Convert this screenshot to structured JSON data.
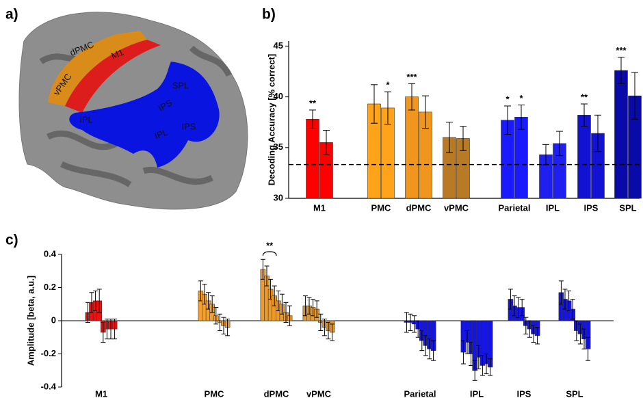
{
  "panel_a": {
    "panel_label": "a)",
    "region_labels": [
      "dPMC",
      "M1",
      "vPMC",
      "SPL",
      "IPS",
      "IPL",
      "IPL",
      "IPS"
    ]
  },
  "chart_data": [
    {
      "type": "bar",
      "panel_label": "b)",
      "ylabel": "Decoding Accuracy [% correct]",
      "categories": [
        "M1",
        "PMC",
        "dPMC",
        "vPMC",
        "Parietal",
        "IPL",
        "IPS",
        "SPL"
      ],
      "colors": [
        "#ff0000",
        "#ffa31a",
        "#f0961e",
        "#b97a26",
        "#1a1aff",
        "#1f1ff0",
        "#1212d2",
        "#0a0aa8"
      ],
      "series": [
        {
          "values": [
            37.8,
            39.3,
            40.0,
            36.0,
            37.7,
            34.3,
            38.2,
            42.6
          ],
          "errors": [
            0.9,
            1.9,
            1.3,
            1.5,
            1.4,
            1.0,
            1.1,
            1.3
          ],
          "annotations": [
            "**",
            null,
            "***",
            null,
            "*",
            null,
            "**",
            "***"
          ]
        },
        {
          "values": [
            35.5,
            38.9,
            38.5,
            35.9,
            38.0,
            35.4,
            36.4,
            40.1
          ],
          "errors": [
            1.2,
            1.6,
            1.6,
            1.2,
            1.2,
            1.2,
            1.8,
            2.3
          ],
          "annotations": [
            null,
            "*",
            null,
            null,
            "*",
            null,
            null,
            null
          ]
        }
      ],
      "ylim": [
        30,
        45.5
      ],
      "yticks": [
        30,
        35,
        40,
        45
      ],
      "reference_line": 33.33
    },
    {
      "type": "bar",
      "panel_label": "c)",
      "ylabel": "Amplitude [beta, a.u.]",
      "categories": [
        "M1",
        "PMC",
        "dPMC",
        "vPMC",
        "Parietal",
        "IPL",
        "IPS",
        "SPL"
      ],
      "colors": [
        "#ee1111",
        "#f2a030",
        "#eb9a2c",
        "#e09a38",
        "#1414e6",
        "#1414e6",
        "#1414e6",
        "#1414e6"
      ],
      "series": [
        {
          "values": [
            0.05,
            0.18,
            0.31,
            0.09,
            -0.01,
            -0.19,
            0.13,
            0.17
          ],
          "errors": [
            0.06,
            0.06,
            0.06,
            0.06,
            0.06,
            0.07,
            0.06,
            0.07
          ]
        },
        {
          "values": [
            0.11,
            0.16,
            0.27,
            0.09,
            -0.01,
            -0.13,
            0.09,
            0.13
          ],
          "errors": [
            0.06,
            0.06,
            0.06,
            0.05,
            0.05,
            0.07,
            0.06,
            0.06
          ]
        },
        {
          "values": [
            0.12,
            0.12,
            0.19,
            0.08,
            -0.02,
            -0.2,
            0.08,
            0.12
          ],
          "errors": [
            0.06,
            0.05,
            0.06,
            0.05,
            0.05,
            0.07,
            0.06,
            0.06
          ]
        },
        {
          "values": [
            0.12,
            0.1,
            0.15,
            0.07,
            -0.05,
            -0.3,
            0.08,
            0.07
          ],
          "errors": [
            0.07,
            0.05,
            0.06,
            0.05,
            0.05,
            0.06,
            0.05,
            0.06
          ]
        },
        {
          "values": [
            -0.07,
            0.03,
            0.12,
            -0.01,
            -0.12,
            -0.22,
            -0.03,
            -0.06
          ],
          "errors": [
            0.06,
            0.05,
            0.06,
            0.05,
            0.06,
            0.07,
            0.05,
            0.06
          ]
        },
        {
          "values": [
            -0.05,
            -0.01,
            0.1,
            -0.04,
            -0.15,
            -0.27,
            -0.05,
            -0.08
          ],
          "errors": [
            0.06,
            0.05,
            0.06,
            0.05,
            0.06,
            0.06,
            0.05,
            0.06
          ]
        },
        {
          "values": [
            -0.05,
            -0.03,
            0.05,
            -0.06,
            -0.17,
            -0.26,
            -0.08,
            -0.11
          ],
          "errors": [
            0.06,
            0.05,
            0.06,
            0.05,
            0.06,
            0.06,
            0.05,
            0.06
          ]
        },
        {
          "values": [
            -0.05,
            -0.04,
            0.03,
            -0.07,
            -0.18,
            -0.28,
            -0.09,
            -0.17
          ],
          "errors": [
            0.06,
            0.05,
            0.06,
            0.05,
            0.06,
            0.05,
            0.05,
            0.07
          ]
        }
      ],
      "bracket_label": "**",
      "ylim": [
        -0.4,
        0.4
      ],
      "yticks": [
        -0.4,
        -0.2,
        0,
        0.2,
        0.4
      ]
    }
  ]
}
